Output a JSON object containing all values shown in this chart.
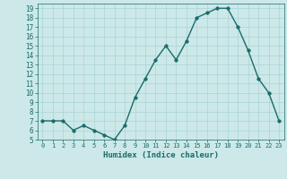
{
  "x": [
    0,
    1,
    2,
    3,
    4,
    5,
    6,
    7,
    8,
    9,
    10,
    11,
    12,
    13,
    14,
    15,
    16,
    17,
    18,
    19,
    20,
    21,
    22,
    23
  ],
  "y": [
    7,
    7,
    7,
    6,
    6.5,
    6,
    5.5,
    5,
    6.5,
    9.5,
    11.5,
    13.5,
    15,
    13.5,
    15.5,
    18,
    18.5,
    19,
    19,
    17,
    14.5,
    11.5,
    10,
    7
  ],
  "xlabel": "Humidex (Indice chaleur)",
  "ylim": [
    5,
    19.5
  ],
  "xlim": [
    -0.5,
    23.5
  ],
  "yticks": [
    5,
    6,
    7,
    8,
    9,
    10,
    11,
    12,
    13,
    14,
    15,
    16,
    17,
    18,
    19
  ],
  "xticks": [
    0,
    1,
    2,
    3,
    4,
    5,
    6,
    7,
    8,
    9,
    10,
    11,
    12,
    13,
    14,
    15,
    16,
    17,
    18,
    19,
    20,
    21,
    22,
    23
  ],
  "line_color": "#1a6b6b",
  "marker_size": 2.5,
  "bg_color": "#cce8e8",
  "grid_color": "#aad4d4",
  "tick_color": "#1a6b6b",
  "label_color": "#1a6b6b",
  "xlabel_fontsize": 6.5,
  "ytick_fontsize": 5.5,
  "xtick_fontsize": 5.0,
  "linewidth": 1.0
}
